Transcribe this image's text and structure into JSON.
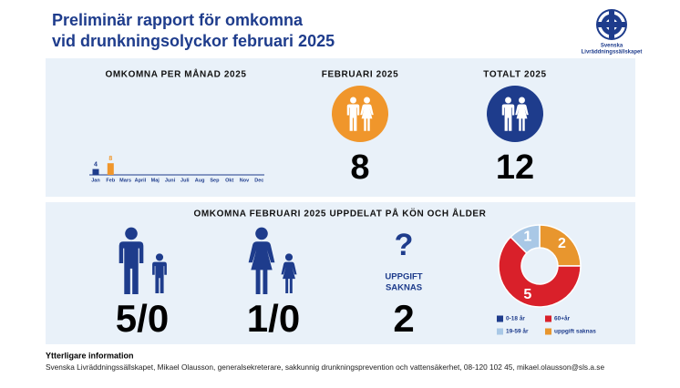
{
  "header": {
    "title_line1": "Preliminär rapport för omkomna",
    "title_line2": "vid drunkningsolyckor februari 2025",
    "logo_line1": "Svenska",
    "logo_line2": "Livräddningssällskapet"
  },
  "chart_data": [
    {
      "type": "bar",
      "title": "OMKOMNA PER MÅNAD 2025",
      "categories": [
        "Jan",
        "Feb",
        "Mars",
        "April",
        "Maj",
        "Juni",
        "Juli",
        "Aug",
        "Sep",
        "Okt",
        "Nov",
        "Dec"
      ],
      "values": [
        4,
        8,
        null,
        null,
        null,
        null,
        null,
        null,
        null,
        null,
        null,
        null
      ],
      "colors": [
        "#1e3c8c",
        "#f0962b",
        "#1e3c8c",
        "#1e3c8c",
        "#1e3c8c",
        "#1e3c8c",
        "#1e3c8c",
        "#1e3c8c",
        "#1e3c8c",
        "#1e3c8c",
        "#1e3c8c",
        "#1e3c8c"
      ]
    },
    {
      "type": "pie",
      "donut": true,
      "categories": [
        "0-18 år",
        "uppgift saknas",
        "60+år",
        "19-59 år"
      ],
      "values": [
        0,
        2,
        5,
        1
      ],
      "colors": [
        "#1e3c8c",
        "#e8962e",
        "#d9202a",
        "#a9c8e6"
      ]
    }
  ],
  "february": {
    "label": "FEBRUARI 2025",
    "value": 8,
    "color": "#f0962b"
  },
  "total": {
    "label": "TOTALT 2025",
    "value": 12,
    "color": "#1e3c8c"
  },
  "breakdown": {
    "title": "OMKOMNA FEBRUARI 2025 UPPDELAT PÅ KÖN OCH ÅLDER",
    "men": "5/0",
    "women": "1/0",
    "unknown": {
      "symbol": "?",
      "label_line1": "UPPGIFT",
      "label_line2": "SAKNAS",
      "value": 2
    }
  },
  "footer": {
    "heading": "Ytterligare information",
    "text": "Svenska Livräddningssällskapet, Mikael Olausson, generalsekreterare, sakkunnig drunkningsprevention och vattensäkerhet, 08-120 102 45, mikael.olausson@sls.a.se"
  }
}
